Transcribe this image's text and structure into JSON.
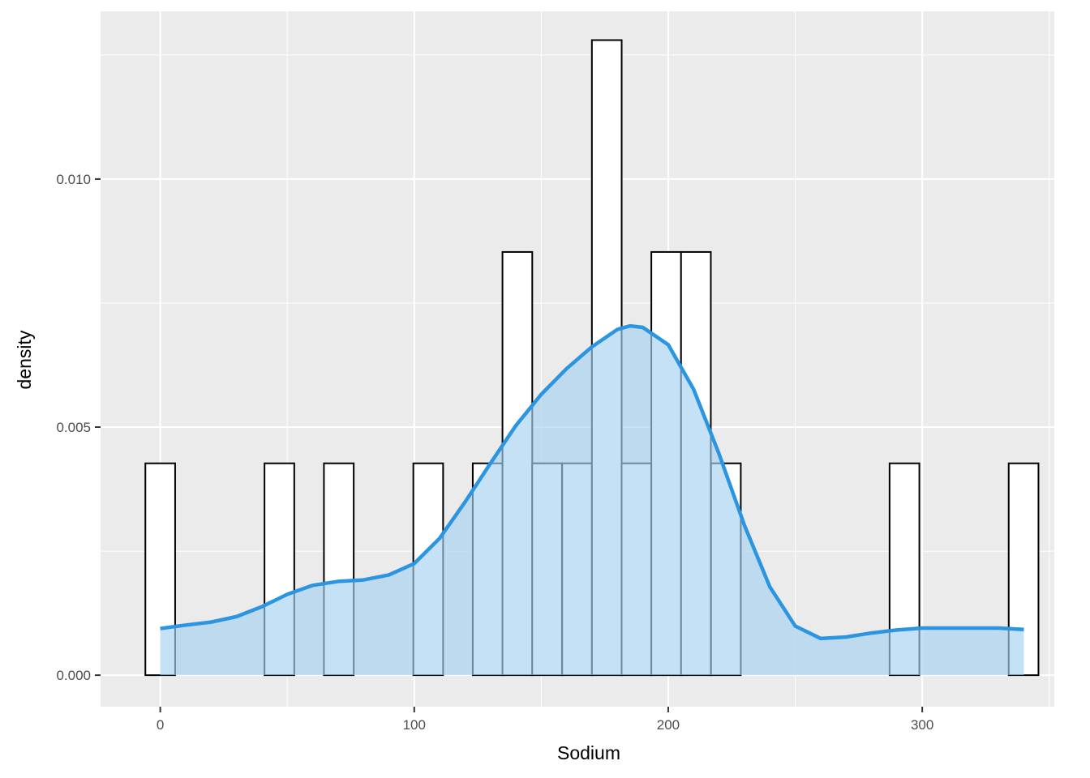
{
  "chart_data": {
    "type": "bar",
    "subtype": "histogram-with-density",
    "xlabel": "Sodium",
    "ylabel": "density",
    "xlim": [
      -23.5,
      352
    ],
    "ylim": [
      -0.000635,
      0.01338
    ],
    "x_ticks": [
      0,
      100,
      200,
      300
    ],
    "x_tick_labels": [
      "0",
      "100",
      "200",
      "300"
    ],
    "y_ticks": [
      0.0,
      0.005,
      0.01
    ],
    "y_tick_labels": [
      "0.000",
      "0.005",
      "0.010"
    ],
    "grid": true,
    "legend": "none",
    "histogram": {
      "bin_width": 11.72,
      "bin_centers": [
        0,
        46.9,
        70.3,
        105.5,
        128.9,
        140.6,
        152.3,
        164.1,
        175.8,
        187.5,
        199.2,
        210.9,
        222.7,
        293.0,
        339.9
      ],
      "densities": [
        0.00427,
        0.00427,
        0.00427,
        0.00427,
        0.00427,
        0.00853,
        0.00427,
        0.00427,
        0.0128,
        0.00427,
        0.00853,
        0.00853,
        0.00427,
        0.00427,
        0.00427
      ],
      "fill": "#ffffff",
      "stroke": "#000000"
    },
    "density_curve": {
      "x": [
        0,
        10,
        20,
        30,
        40,
        50,
        60,
        70,
        80,
        90,
        100,
        110,
        120,
        130,
        140,
        150,
        160,
        170,
        180,
        185,
        190,
        200,
        210,
        220,
        230,
        240,
        250,
        260,
        270,
        280,
        290,
        300,
        310,
        320,
        330,
        340
      ],
      "y": [
        0.00094,
        0.00101,
        0.00107,
        0.00118,
        0.00138,
        0.00163,
        0.00181,
        0.00189,
        0.00192,
        0.00202,
        0.00225,
        0.00276,
        0.00349,
        0.00427,
        0.00503,
        0.00566,
        0.00618,
        0.00662,
        0.00697,
        0.00704,
        0.00701,
        0.00666,
        0.00576,
        0.00446,
        0.00302,
        0.00178,
        0.00099,
        0.00074,
        0.00077,
        0.00085,
        0.00091,
        0.00095,
        0.00095,
        0.00095,
        0.00095,
        0.00092
      ],
      "line_color": "#2b95e2",
      "fill_color": "#a6d1f1"
    }
  }
}
